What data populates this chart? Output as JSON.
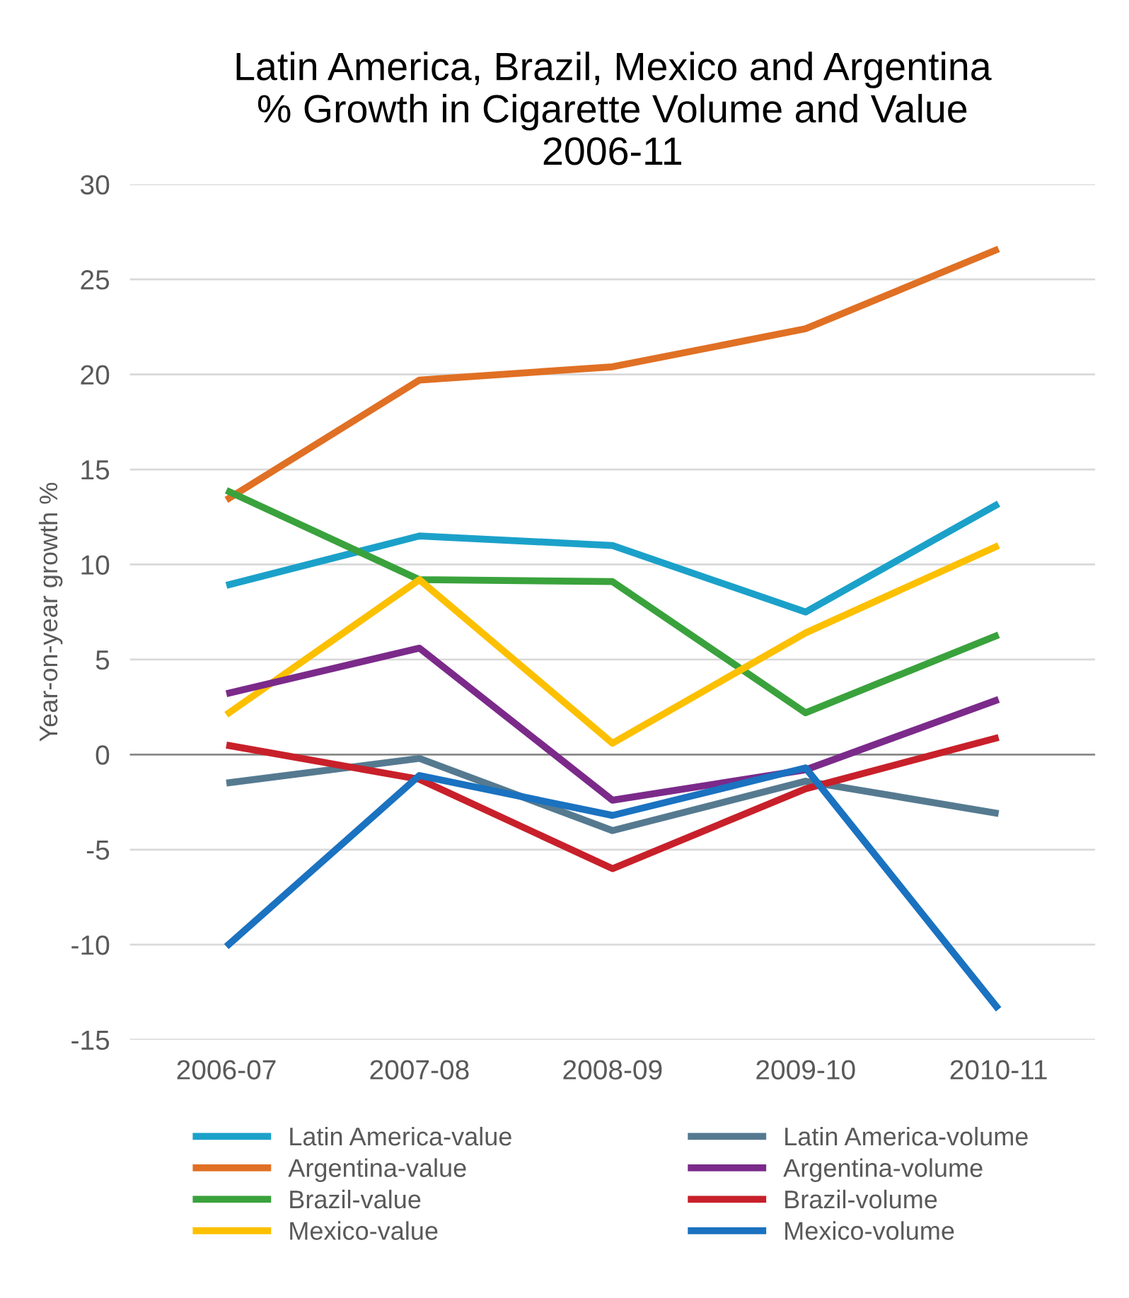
{
  "chart_data": {
    "type": "line",
    "title": "Latin America, Brazil, Mexico and Argentina\n% Growth in Cigarette Volume and Value\n2006-11",
    "ylabel": "Year-on-year growth %",
    "categories": [
      "2006-07",
      "2007-08",
      "2008-09",
      "2009-10",
      "2010-11"
    ],
    "series": [
      {
        "name": "Latin America-value",
        "color": "#1ba1c9",
        "values": [
          8.9,
          11.5,
          11.0,
          7.5,
          13.2
        ]
      },
      {
        "name": "Argentina-value",
        "color": "#e07024",
        "values": [
          13.4,
          19.7,
          20.4,
          22.4,
          26.6
        ]
      },
      {
        "name": "Brazil-value",
        "color": "#3aa23c",
        "values": [
          13.9,
          9.2,
          9.1,
          2.2,
          6.3
        ]
      },
      {
        "name": "Mexico-value",
        "color": "#fcc000",
        "values": [
          2.1,
          9.2,
          0.6,
          6.4,
          11.0
        ]
      },
      {
        "name": "Latin America-volume",
        "color": "#557a90",
        "values": [
          -1.5,
          -0.2,
          -4.0,
          -1.4,
          -3.1
        ]
      },
      {
        "name": "Argentina-volume",
        "color": "#7b2a8a",
        "values": [
          3.2,
          5.6,
          -2.4,
          -0.8,
          2.9
        ]
      },
      {
        "name": "Brazil-volume",
        "color": "#c8202a",
        "values": [
          0.5,
          -1.3,
          -6.0,
          -1.8,
          0.9
        ]
      },
      {
        "name": "Mexico-volume",
        "color": "#1a72c0",
        "values": [
          -10.1,
          -1.1,
          -3.2,
          -0.7,
          -13.4
        ]
      }
    ],
    "ylim": [
      -15,
      30
    ],
    "yticks": [
      -15,
      -10,
      -5,
      0,
      5,
      10,
      15,
      20,
      25,
      30
    ],
    "grid": "y",
    "legend": "bottom",
    "marker": "none",
    "line_style": "solid"
  }
}
